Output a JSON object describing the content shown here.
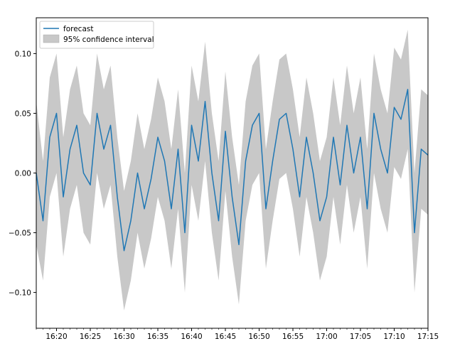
{
  "chart_data": {
    "type": "line",
    "title": "",
    "xlabel": "",
    "ylabel": "",
    "x_range": [
      "16:17",
      "17:15"
    ],
    "ylim": [
      -0.13,
      0.13
    ],
    "grid": false,
    "legend_placement": "top-left",
    "x_ticks": [
      "16:20",
      "16:25",
      "16:30",
      "16:35",
      "16:40",
      "16:45",
      "16:50",
      "16:55",
      "17:00",
      "17:05",
      "17:10",
      "17:15"
    ],
    "y_ticks": [
      "-0.10",
      "-0.05",
      "0.00",
      "0.05",
      "0.10"
    ],
    "series": [
      {
        "name": "forecast",
        "kind": "line",
        "color": "#1f77b4",
        "x": [
          "16:17",
          "16:18",
          "16:19",
          "16:20",
          "16:21",
          "16:22",
          "16:23",
          "16:24",
          "16:25",
          "16:26",
          "16:27",
          "16:28",
          "16:29",
          "16:30",
          "16:31",
          "16:32",
          "16:33",
          "16:34",
          "16:35",
          "16:36",
          "16:37",
          "16:38",
          "16:39",
          "16:40",
          "16:41",
          "16:42",
          "16:43",
          "16:44",
          "16:45",
          "16:46",
          "16:47",
          "16:48",
          "16:49",
          "16:50",
          "16:51",
          "16:52",
          "16:53",
          "16:54",
          "16:55",
          "16:56",
          "16:57",
          "16:58",
          "16:59",
          "17:00",
          "17:01",
          "17:02",
          "17:03",
          "17:04",
          "17:05",
          "17:06",
          "17:07",
          "17:08",
          "17:09",
          "17:10",
          "17:11",
          "17:12",
          "17:13",
          "17:14",
          "17:15"
        ],
        "values": [
          0.0,
          -0.04,
          0.03,
          0.05,
          -0.02,
          0.02,
          0.04,
          0.0,
          -0.01,
          0.05,
          0.02,
          0.04,
          -0.02,
          -0.065,
          -0.04,
          0.0,
          -0.03,
          -0.005,
          0.03,
          0.01,
          -0.03,
          0.02,
          -0.05,
          0.04,
          0.01,
          0.06,
          0.0,
          -0.04,
          0.035,
          -0.02,
          -0.06,
          0.01,
          0.04,
          0.05,
          -0.03,
          0.01,
          0.045,
          0.05,
          0.02,
          -0.02,
          0.03,
          0.0,
          -0.04,
          -0.02,
          0.03,
          -0.01,
          0.04,
          0.0,
          0.03,
          -0.03,
          0.05,
          0.02,
          0.0,
          0.055,
          0.045,
          0.07,
          -0.05,
          0.02,
          0.015
        ]
      },
      {
        "name": "95% confidence interval",
        "kind": "band",
        "color": "#c8c8c8",
        "x": [
          "16:17",
          "16:18",
          "16:19",
          "16:20",
          "16:21",
          "16:22",
          "16:23",
          "16:24",
          "16:25",
          "16:26",
          "16:27",
          "16:28",
          "16:29",
          "16:30",
          "16:31",
          "16:32",
          "16:33",
          "16:34",
          "16:35",
          "16:36",
          "16:37",
          "16:38",
          "16:39",
          "16:40",
          "16:41",
          "16:42",
          "16:43",
          "16:44",
          "16:45",
          "16:46",
          "16:47",
          "16:48",
          "16:49",
          "16:50",
          "16:51",
          "16:52",
          "16:53",
          "16:54",
          "16:55",
          "16:56",
          "16:57",
          "16:58",
          "16:59",
          "17:00",
          "17:01",
          "17:02",
          "17:03",
          "17:04",
          "17:05",
          "17:06",
          "17:07",
          "17:08",
          "17:09",
          "17:10",
          "17:11",
          "17:12",
          "17:13",
          "17:14",
          "17:15"
        ],
        "lower": [
          -0.06,
          -0.09,
          -0.02,
          0.0,
          -0.07,
          -0.03,
          -0.01,
          -0.05,
          -0.06,
          0.0,
          -0.03,
          -0.01,
          -0.07,
          -0.115,
          -0.09,
          -0.05,
          -0.08,
          -0.055,
          -0.02,
          -0.04,
          -0.08,
          -0.03,
          -0.1,
          -0.01,
          -0.04,
          0.01,
          -0.05,
          -0.09,
          -0.015,
          -0.07,
          -0.11,
          -0.04,
          -0.01,
          0.0,
          -0.08,
          -0.04,
          -0.005,
          0.0,
          -0.03,
          -0.07,
          -0.02,
          -0.05,
          -0.09,
          -0.07,
          -0.02,
          -0.06,
          -0.01,
          -0.05,
          -0.02,
          -0.08,
          0.0,
          -0.03,
          -0.05,
          0.005,
          -0.005,
          0.02,
          -0.1,
          -0.03,
          -0.035
        ],
        "upper": [
          0.06,
          0.01,
          0.08,
          0.1,
          0.03,
          0.07,
          0.09,
          0.05,
          0.04,
          0.1,
          0.07,
          0.09,
          0.03,
          -0.015,
          0.01,
          0.05,
          0.02,
          0.045,
          0.08,
          0.06,
          0.02,
          0.07,
          0.0,
          0.09,
          0.06,
          0.11,
          0.05,
          0.01,
          0.085,
          0.03,
          -0.01,
          0.06,
          0.09,
          0.1,
          0.02,
          0.06,
          0.095,
          0.1,
          0.07,
          0.03,
          0.08,
          0.05,
          0.01,
          0.03,
          0.08,
          0.04,
          0.09,
          0.05,
          0.08,
          0.02,
          0.1,
          0.07,
          0.05,
          0.105,
          0.095,
          0.12,
          0.0,
          0.07,
          0.065
        ]
      }
    ]
  }
}
